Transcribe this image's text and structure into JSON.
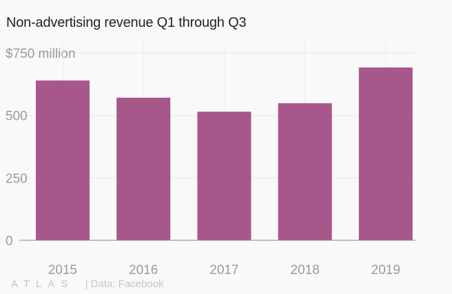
{
  "chart_data": {
    "type": "bar",
    "title": "Non-advertising revenue Q1 through Q3",
    "categories": [
      "2015",
      "2016",
      "2017",
      "2018",
      "2019"
    ],
    "values": [
      640,
      571,
      515,
      549,
      692
    ],
    "ylim": [
      0,
      750
    ],
    "yticks": [
      {
        "value": 0,
        "label": "0"
      },
      {
        "value": 250,
        "label": "250"
      },
      {
        "value": 500,
        "label": "500"
      },
      {
        "value": 750,
        "label": "$750 million"
      }
    ],
    "xlabel": "",
    "ylabel": "",
    "grid": true,
    "bar_color": "#a8578a"
  },
  "footer": {
    "logo": "ATLAS",
    "source": "| Data: Facebook"
  }
}
